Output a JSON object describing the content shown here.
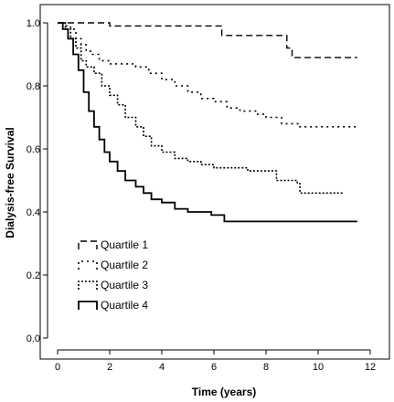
{
  "chart_data": {
    "type": "line",
    "step": true,
    "title": "",
    "xlabel": "Time (years)",
    "ylabel": "Dialysis-free Survival",
    "xlim": [
      0,
      12
    ],
    "ylim": [
      0,
      1.0
    ],
    "xticks": [
      0,
      2,
      4,
      6,
      8,
      10,
      12
    ],
    "yticks": [
      0.0,
      0.2,
      0.4,
      0.6,
      0.8,
      1.0
    ],
    "grid": false,
    "legend_position": "bottom-left",
    "series": [
      {
        "name": "Quartile 1",
        "dash": "dashed",
        "points": [
          [
            0,
            1.0
          ],
          [
            2.0,
            0.99
          ],
          [
            6.3,
            0.96
          ],
          [
            8.8,
            0.92
          ],
          [
            9.0,
            0.89
          ],
          [
            11.5,
            0.89
          ]
        ]
      },
      {
        "name": "Quartile 2",
        "dash": "dotted-sparse",
        "points": [
          [
            0,
            1.0
          ],
          [
            0.3,
            0.99
          ],
          [
            0.5,
            0.98
          ],
          [
            0.7,
            0.95
          ],
          [
            0.9,
            0.93
          ],
          [
            1.1,
            0.91
          ],
          [
            1.3,
            0.9
          ],
          [
            1.6,
            0.88
          ],
          [
            2.0,
            0.87
          ],
          [
            2.5,
            0.87
          ],
          [
            3.0,
            0.86
          ],
          [
            3.5,
            0.84
          ],
          [
            4.0,
            0.82
          ],
          [
            4.5,
            0.8
          ],
          [
            5.0,
            0.78
          ],
          [
            5.5,
            0.76
          ],
          [
            6.0,
            0.75
          ],
          [
            6.5,
            0.73
          ],
          [
            7.0,
            0.72
          ],
          [
            7.6,
            0.71
          ],
          [
            8.0,
            0.7
          ],
          [
            8.6,
            0.68
          ],
          [
            9.3,
            0.67
          ],
          [
            11.5,
            0.67
          ]
        ]
      },
      {
        "name": "Quartile 3",
        "dash": "dotted-dense",
        "points": [
          [
            0,
            1.0
          ],
          [
            0.3,
            0.98
          ],
          [
            0.5,
            0.95
          ],
          [
            0.7,
            0.92
          ],
          [
            0.9,
            0.88
          ],
          [
            1.1,
            0.86
          ],
          [
            1.4,
            0.84
          ],
          [
            1.7,
            0.8
          ],
          [
            2.0,
            0.77
          ],
          [
            2.3,
            0.74
          ],
          [
            2.6,
            0.7
          ],
          [
            3.0,
            0.67
          ],
          [
            3.3,
            0.64
          ],
          [
            3.6,
            0.61
          ],
          [
            4.0,
            0.59
          ],
          [
            4.5,
            0.57
          ],
          [
            5.0,
            0.56
          ],
          [
            5.5,
            0.55
          ],
          [
            6.0,
            0.54
          ],
          [
            7.0,
            0.54
          ],
          [
            7.3,
            0.53
          ],
          [
            8.0,
            0.53
          ],
          [
            8.4,
            0.5
          ],
          [
            9.2,
            0.49
          ],
          [
            9.3,
            0.46
          ],
          [
            11.0,
            0.46
          ]
        ]
      },
      {
        "name": "Quartile 4",
        "dash": "solid",
        "points": [
          [
            0,
            1.0
          ],
          [
            0.2,
            0.98
          ],
          [
            0.4,
            0.95
          ],
          [
            0.6,
            0.9
          ],
          [
            0.8,
            0.85
          ],
          [
            1.0,
            0.78
          ],
          [
            1.2,
            0.72
          ],
          [
            1.4,
            0.67
          ],
          [
            1.6,
            0.63
          ],
          [
            1.8,
            0.59
          ],
          [
            2.0,
            0.56
          ],
          [
            2.3,
            0.53
          ],
          [
            2.6,
            0.5
          ],
          [
            3.0,
            0.48
          ],
          [
            3.3,
            0.46
          ],
          [
            3.6,
            0.44
          ],
          [
            4.0,
            0.43
          ],
          [
            4.5,
            0.41
          ],
          [
            5.0,
            0.4
          ],
          [
            5.5,
            0.4
          ],
          [
            5.9,
            0.39
          ],
          [
            6.4,
            0.37
          ],
          [
            11.5,
            0.37
          ]
        ]
      }
    ]
  }
}
